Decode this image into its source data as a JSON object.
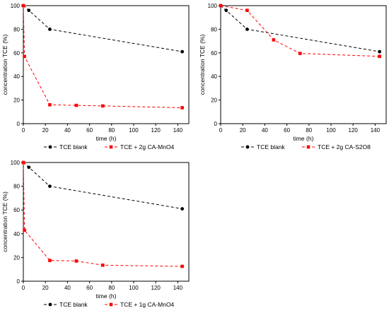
{
  "chart_data": [
    {
      "type": "line",
      "xlabel": "time (h)",
      "ylabel": "concentration TCE (%)",
      "xlim": [
        0,
        150
      ],
      "ylim": [
        0,
        100
      ],
      "xticks": [
        0,
        20,
        40,
        60,
        80,
        100,
        120,
        140
      ],
      "yticks": [
        0,
        20,
        40,
        60,
        80,
        100
      ],
      "legend_position": "bottom",
      "grid": false,
      "series": [
        {
          "name": "TCE blank",
          "color": "#000000",
          "marker": "circle",
          "x": [
            0,
            5,
            24,
            144
          ],
          "y": [
            100,
            96,
            80,
            61
          ]
        },
        {
          "name": "TCE + 2g CA-MnO4",
          "color": "#ff0000",
          "marker": "square",
          "x": [
            0,
            1,
            24,
            48,
            72,
            144
          ],
          "y": [
            100,
            57,
            16,
            15.5,
            15,
            13.5
          ]
        }
      ]
    },
    {
      "type": "line",
      "xlabel": "time (h)",
      "ylabel": "concentration TCE (%)",
      "xlim": [
        0,
        150
      ],
      "ylim": [
        0,
        100
      ],
      "xticks": [
        0,
        20,
        40,
        60,
        80,
        100,
        120,
        140
      ],
      "yticks": [
        0,
        20,
        40,
        60,
        80,
        100
      ],
      "legend_position": "bottom",
      "grid": false,
      "series": [
        {
          "name": "TCE blank",
          "color": "#000000",
          "marker": "circle",
          "x": [
            0,
            5,
            24,
            144
          ],
          "y": [
            100,
            96,
            80,
            61
          ]
        },
        {
          "name": "TCE + 2g CA-S2O8",
          "color": "#ff0000",
          "marker": "square",
          "x": [
            0,
            24,
            48,
            72,
            144
          ],
          "y": [
            100,
            96,
            71,
            59.5,
            57
          ]
        }
      ]
    },
    {
      "type": "line",
      "xlabel": "time (h)",
      "ylabel": "concentration TCE (%)",
      "xlim": [
        0,
        150
      ],
      "ylim": [
        0,
        100
      ],
      "xticks": [
        0,
        20,
        40,
        60,
        80,
        100,
        120,
        140
      ],
      "yticks": [
        0,
        20,
        40,
        60,
        80,
        100
      ],
      "legend_position": "bottom",
      "grid": false,
      "series": [
        {
          "name": "TCE blank",
          "color": "#000000",
          "marker": "circle",
          "x": [
            0,
            5,
            24,
            144
          ],
          "y": [
            100,
            96,
            80,
            61
          ]
        },
        {
          "name": "TCE + 1g CA-MnO4",
          "color": "#ff0000",
          "marker": "square",
          "x": [
            0,
            1,
            24,
            48,
            72,
            144
          ],
          "y": [
            100,
            43,
            17.5,
            17,
            13.5,
            12.5
          ]
        }
      ]
    }
  ]
}
